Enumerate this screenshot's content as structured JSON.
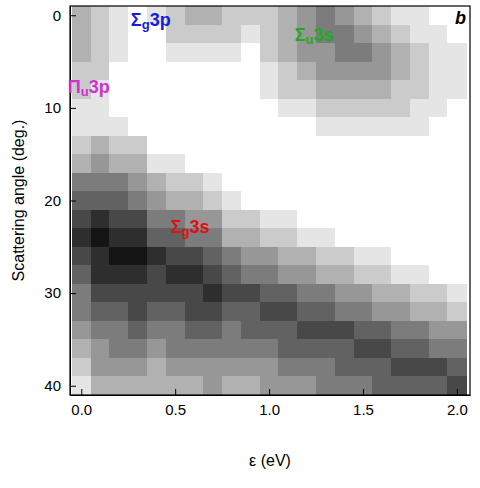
{
  "chart_data": {
    "type": "heatmap",
    "x_label": "ε (eV)",
    "y_label": "Scattering angle (deg.)",
    "x": [
      0,
      0.1,
      0.2,
      0.3,
      0.4,
      0.5,
      0.6,
      0.7,
      0.8,
      0.9,
      1.0,
      1.1,
      1.2,
      1.3,
      1.4,
      1.5,
      1.6,
      1.7,
      1.8,
      1.9,
      2.0
    ],
    "y": [
      0,
      2,
      4,
      6,
      8,
      10,
      12,
      14,
      16,
      18,
      20,
      22,
      24,
      26,
      28,
      30,
      32,
      34,
      36,
      38,
      40
    ],
    "cells": [
      [
        3,
        2,
        1,
        0,
        1,
        2,
        3,
        3,
        2,
        2,
        2,
        3,
        4,
        5,
        4,
        3,
        2,
        1,
        1,
        0,
        0
      ],
      [
        3,
        2,
        1,
        0,
        0,
        2,
        2,
        2,
        2,
        1,
        2,
        3,
        4,
        5,
        5,
        4,
        3,
        2,
        1,
        1,
        0
      ],
      [
        3,
        2,
        1,
        0,
        0,
        1,
        1,
        1,
        1,
        0,
        2,
        3,
        4,
        4,
        5,
        5,
        4,
        3,
        2,
        1,
        1
      ],
      [
        2,
        2,
        0,
        0,
        0,
        0,
        0,
        0,
        0,
        0,
        1,
        2,
        3,
        4,
        4,
        4,
        4,
        3,
        2,
        1,
        1
      ],
      [
        2,
        1,
        0,
        0,
        0,
        0,
        0,
        0,
        0,
        0,
        1,
        2,
        2,
        3,
        3,
        3,
        3,
        2,
        2,
        1,
        1
      ],
      [
        1,
        1,
        0,
        0,
        0,
        0,
        0,
        0,
        0,
        0,
        0,
        1,
        1,
        2,
        2,
        2,
        2,
        2,
        1,
        1,
        0
      ],
      [
        1,
        1,
        1,
        0,
        0,
        0,
        0,
        0,
        0,
        0,
        0,
        0,
        0,
        1,
        1,
        1,
        1,
        1,
        1,
        0,
        0
      ],
      [
        2,
        3,
        2,
        2,
        0,
        0,
        0,
        0,
        0,
        0,
        0,
        0,
        0,
        0,
        0,
        0,
        0,
        0,
        0,
        0,
        0
      ],
      [
        3,
        4,
        3,
        3,
        1,
        1,
        0,
        0,
        0,
        0,
        0,
        0,
        0,
        0,
        0,
        0,
        0,
        0,
        0,
        0,
        0
      ],
      [
        5,
        5,
        5,
        4,
        3,
        2,
        2,
        1,
        0,
        0,
        0,
        0,
        0,
        0,
        0,
        0,
        0,
        0,
        0,
        0,
        0
      ],
      [
        6,
        6,
        6,
        5,
        4,
        3,
        3,
        2,
        1,
        0,
        0,
        0,
        0,
        0,
        0,
        0,
        0,
        0,
        0,
        0,
        0
      ],
      [
        7,
        8,
        7,
        7,
        5,
        5,
        4,
        4,
        2,
        2,
        1,
        1,
        0,
        0,
        0,
        0,
        0,
        0,
        0,
        0,
        0
      ],
      [
        8,
        9,
        8,
        8,
        6,
        6,
        5,
        5,
        3,
        3,
        2,
        2,
        1,
        1,
        0,
        0,
        0,
        0,
        0,
        0,
        0
      ],
      [
        7,
        8,
        9,
        9,
        8,
        7,
        7,
        6,
        5,
        4,
        4,
        3,
        3,
        2,
        2,
        1,
        1,
        0,
        0,
        0,
        0
      ],
      [
        6,
        8,
        8,
        8,
        7,
        8,
        8,
        7,
        6,
        5,
        5,
        4,
        4,
        3,
        3,
        2,
        2,
        1,
        1,
        0,
        0
      ],
      [
        5,
        7,
        7,
        7,
        7,
        7,
        7,
        8,
        7,
        7,
        6,
        6,
        5,
        5,
        4,
        4,
        3,
        3,
        2,
        2,
        1
      ],
      [
        5,
        6,
        6,
        7,
        6,
        6,
        7,
        7,
        6,
        6,
        7,
        7,
        6,
        6,
        5,
        5,
        4,
        4,
        3,
        3,
        2
      ],
      [
        4,
        5,
        5,
        6,
        5,
        5,
        6,
        6,
        5,
        6,
        6,
        6,
        7,
        7,
        7,
        6,
        6,
        5,
        5,
        4,
        4
      ],
      [
        3,
        4,
        5,
        5,
        4,
        5,
        5,
        5,
        5,
        5,
        5,
        6,
        6,
        6,
        6,
        7,
        7,
        6,
        6,
        5,
        5
      ],
      [
        2,
        4,
        4,
        4,
        3,
        4,
        4,
        4,
        4,
        4,
        4,
        5,
        5,
        5,
        6,
        6,
        6,
        7,
        7,
        7,
        6
      ],
      [
        1,
        3,
        3,
        3,
        3,
        3,
        3,
        4,
        3,
        3,
        4,
        4,
        4,
        5,
        5,
        5,
        6,
        6,
        6,
        6,
        7
      ]
    ],
    "zlim": [
      0,
      9
    ],
    "xlim": [
      -0.06,
      2.07
    ],
    "ylim": [
      -1,
      41
    ],
    "xticks": [
      {
        "value": 0,
        "label": "0.0"
      },
      {
        "value": 0.5,
        "label": "0.5"
      },
      {
        "value": 1,
        "label": "1.0"
      },
      {
        "value": 1.5,
        "label": "1.5"
      },
      {
        "value": 2,
        "label": "2.0"
      }
    ],
    "yticks": [
      0,
      10,
      20,
      30,
      40
    ],
    "annotations": [
      {
        "text": "Σg3p",
        "x": 0.37,
        "y": 0.6,
        "color": "#1a1adb"
      },
      {
        "text": "Σu3s",
        "x": 1.24,
        "y": 2.2,
        "color": "#22aa22"
      },
      {
        "text": "Πu3p",
        "x": 0.04,
        "y": 7.9,
        "color": "#cc33cc"
      },
      {
        "text": "Σg3s",
        "x": 0.58,
        "y": 23.0,
        "color": "#dd1111"
      },
      {
        "text": "b",
        "x": 2.02,
        "y": 0.4,
        "color": "#000000"
      }
    ]
  }
}
